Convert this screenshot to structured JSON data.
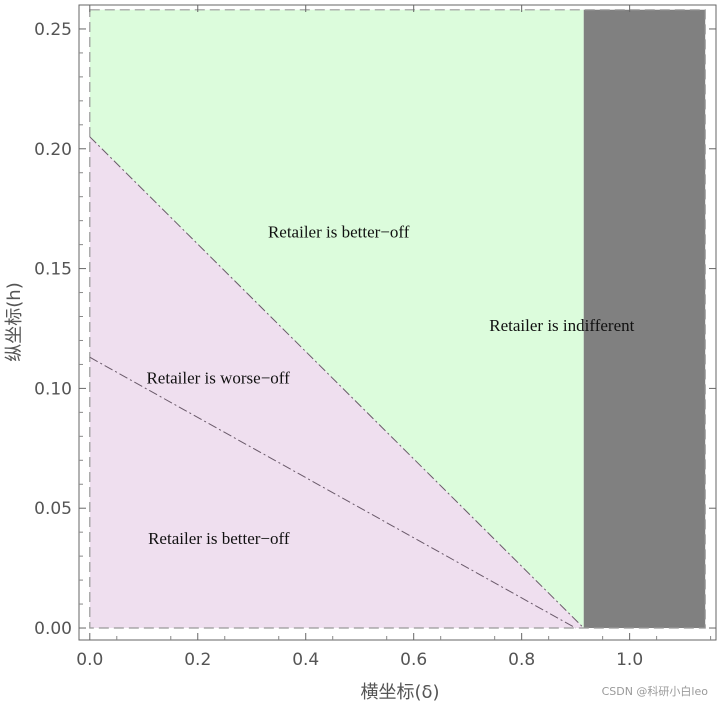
{
  "chart_data": {
    "type": "area",
    "title": "",
    "xlabel": "横坐标(δ)",
    "ylabel": "纵坐标(h)",
    "xlim": [
      -0.02,
      1.16
    ],
    "ylim": [
      -0.005,
      0.26
    ],
    "plot_range": {
      "x": [
        0,
        1.14
      ],
      "y": [
        0,
        0.258
      ]
    },
    "x_ticks": [
      "0.0",
      "0.2",
      "0.4",
      "0.6",
      "0.8",
      "1.0"
    ],
    "x_tick_values": [
      0,
      0.2,
      0.4,
      0.6,
      0.8,
      1.0
    ],
    "y_ticks": [
      "0.00",
      "0.05",
      "0.10",
      "0.15",
      "0.20",
      "0.25"
    ],
    "y_tick_values": [
      0,
      0.05,
      0.1,
      0.15,
      0.2,
      0.25
    ],
    "grid": false,
    "regions": [
      {
        "name": "green-region",
        "color": "#dcfcdc",
        "points": [
          [
            0,
            0.258
          ],
          [
            0.915,
            0.258
          ],
          [
            0.915,
            0
          ],
          [
            0,
            0.205
          ]
        ]
      },
      {
        "name": "pink-region",
        "color": "#efdfef",
        "points": [
          [
            0,
            0.205
          ],
          [
            0.915,
            0
          ],
          [
            0,
            0
          ]
        ]
      },
      {
        "name": "gray-region",
        "color": "#808080",
        "points": [
          [
            0.915,
            0.258
          ],
          [
            1.14,
            0.258
          ],
          [
            1.14,
            0
          ],
          [
            0.915,
            0
          ]
        ]
      }
    ],
    "boundaries": [
      {
        "name": "upper-boundary",
        "x": [
          0,
          0.915
        ],
        "y": [
          0.205,
          0
        ]
      },
      {
        "name": "lower-boundary",
        "x": [
          0,
          0.9
        ],
        "y": [
          0.113,
          0
        ]
      }
    ],
    "labels": [
      {
        "text": "Retailer is better−off",
        "x": 0.33,
        "y": 0.163
      },
      {
        "text": "Retailer is indifferent",
        "x": 0.74,
        "y": 0.124
      },
      {
        "text": "Retailer is worse−off",
        "x": 0.105,
        "y": 0.102
      },
      {
        "text": "Retailer is better−off",
        "x": 0.108,
        "y": 0.035
      }
    ]
  },
  "watermark": "CSDN @科研小白leo"
}
